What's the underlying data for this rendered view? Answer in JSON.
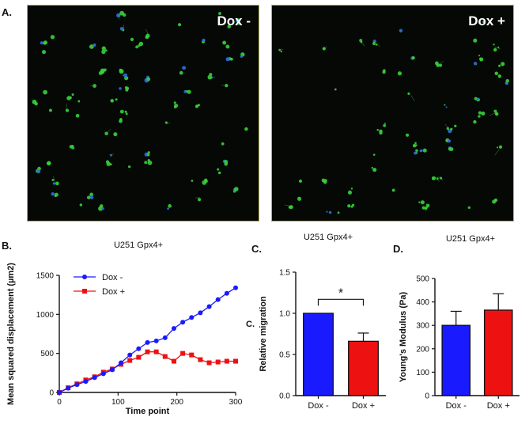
{
  "panels": {
    "a": "A.",
    "b": "B.",
    "c": "C.",
    "d": "D.",
    "c_stray": "C."
  },
  "images": [
    {
      "label": "Dox -"
    },
    {
      "label": "Dox +"
    }
  ],
  "chart_data": [
    {
      "type": "line",
      "title": "U251 Gpx4+",
      "xlabel": "Time point",
      "ylabel": "Mean squared displacement (µm2)",
      "xlim": [
        0,
        300
      ],
      "ylim": [
        0,
        1500
      ],
      "xticks": [
        0,
        100,
        200,
        300
      ],
      "yticks": [
        0,
        500,
        1000,
        1500
      ],
      "legend": "top-left",
      "x": [
        0,
        15,
        30,
        45,
        60,
        75,
        90,
        105,
        120,
        135,
        150,
        165,
        180,
        195,
        210,
        225,
        240,
        255,
        270,
        285,
        300
      ],
      "series": [
        {
          "name": "Dox -",
          "color": "#1a1aff",
          "marker": "circle",
          "values": [
            0,
            55,
            100,
            140,
            190,
            240,
            290,
            380,
            480,
            560,
            640,
            660,
            700,
            820,
            900,
            960,
            1020,
            1100,
            1190,
            1270,
            1340
          ]
        },
        {
          "name": "Dox +",
          "color": "#ee1111",
          "marker": "square",
          "values": [
            0,
            60,
            110,
            160,
            200,
            260,
            300,
            360,
            410,
            450,
            520,
            520,
            460,
            400,
            500,
            480,
            420,
            380,
            390,
            400,
            400
          ]
        }
      ]
    },
    {
      "type": "bar",
      "title": "U251 Gpx4+",
      "xlabel": "",
      "ylabel": "Relative migration",
      "ylim": [
        0,
        1.5
      ],
      "yticks": [
        "0.0",
        "0.5",
        "1.0",
        "1.5"
      ],
      "categories": [
        "Dox -",
        "Dox +"
      ],
      "values": [
        1.0,
        0.66
      ],
      "errors": [
        0,
        0.1
      ],
      "colors": [
        "#1a1aff",
        "#ee1111"
      ],
      "annotation": "*"
    },
    {
      "type": "bar",
      "title": "U251 Gpx4+",
      "xlabel": "",
      "ylabel": "Young's Modulus (Pa)",
      "ylim": [
        0,
        500
      ],
      "yticks": [
        "0",
        "100",
        "200",
        "300",
        "400",
        "500"
      ],
      "categories": [
        "Dox -",
        "Dox +"
      ],
      "values": [
        300,
        365
      ],
      "errors": [
        60,
        70
      ],
      "colors": [
        "#1a1aff",
        "#ee1111"
      ]
    }
  ]
}
